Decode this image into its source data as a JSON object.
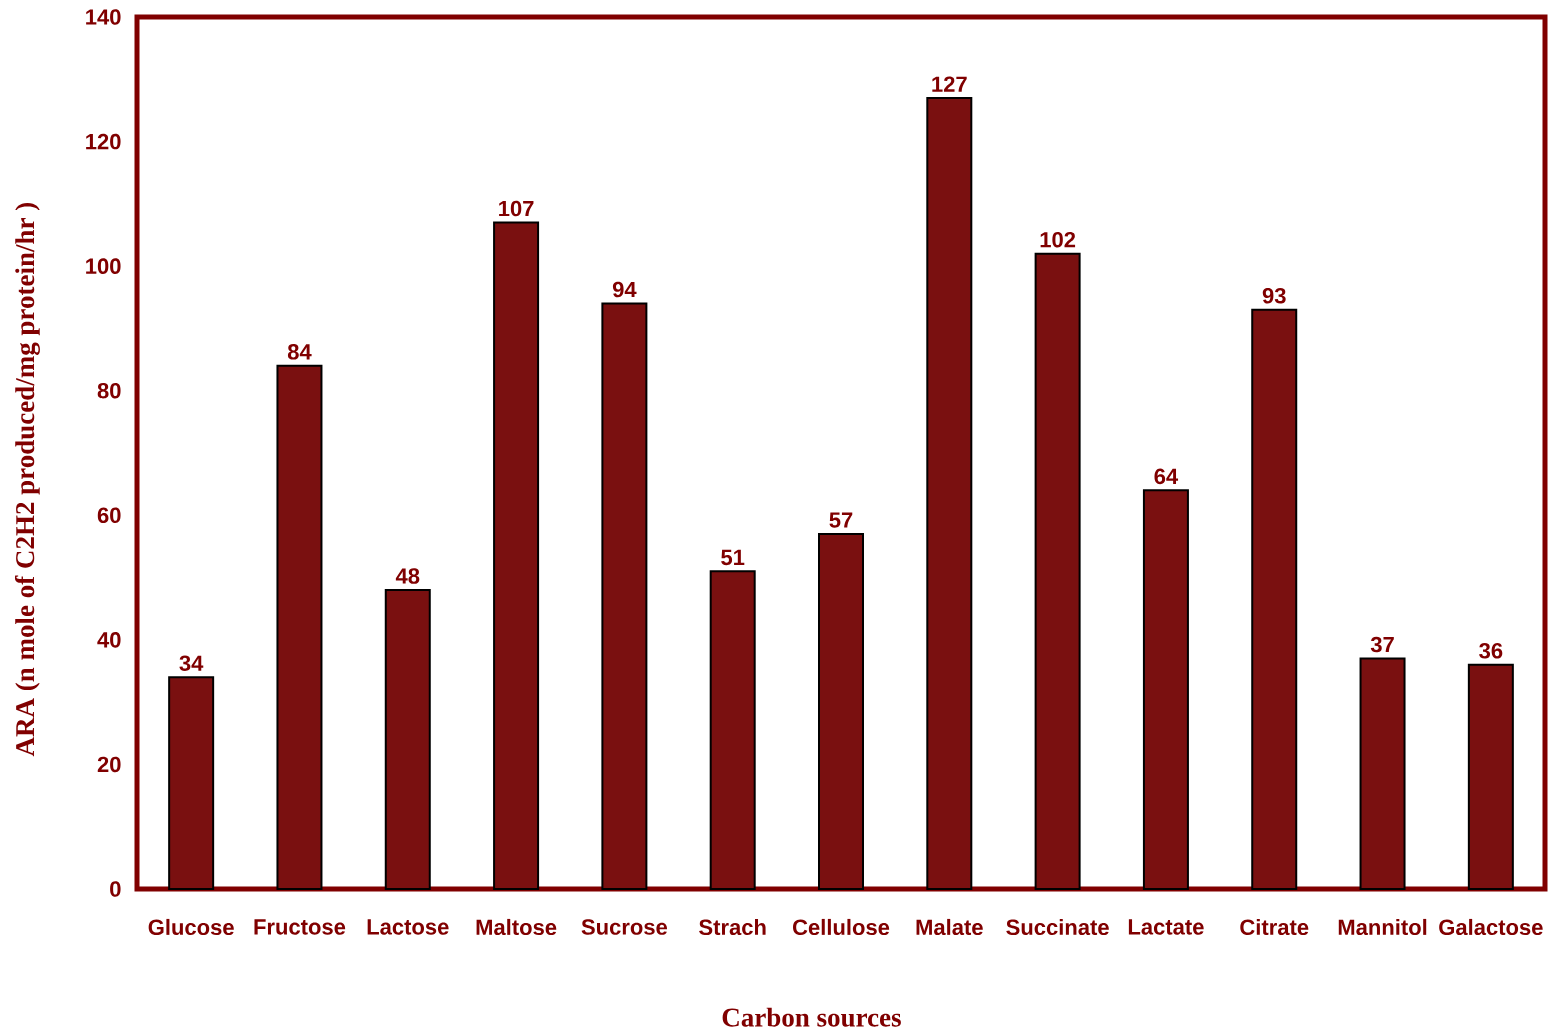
{
  "chart_data": {
    "type": "bar",
    "xlabel": "Carbon sources",
    "ylabel": "ARA (n mole of C2H2 produced/mg protein/hr )",
    "categories": [
      "Glucose",
      "Fructose",
      "Lactose",
      "Maltose",
      "Sucrose",
      "Strach",
      "Cellulose",
      "Malate",
      "Succinate",
      "Lactate",
      "Citrate",
      "Mannitol",
      "Galactose"
    ],
    "values": [
      34,
      84,
      48,
      107,
      94,
      51,
      57,
      127,
      102,
      64,
      93,
      37,
      36
    ],
    "color": "#7a1010",
    "ylim": [
      0,
      140
    ],
    "yticks": [
      0,
      20,
      40,
      60,
      80,
      100,
      120,
      140
    ],
    "data_labels": true
  }
}
